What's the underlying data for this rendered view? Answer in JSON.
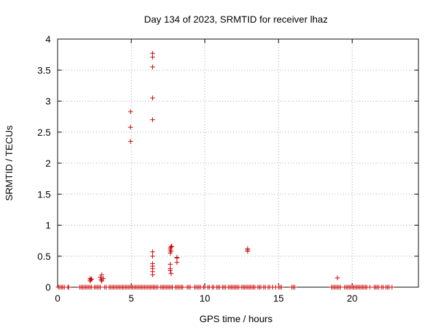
{
  "chart_data": {
    "type": "scatter",
    "title": "Day 134 of 2023, SRMTID for receiver lhaz",
    "xlabel": "GPS time / hours",
    "ylabel": "SRMTID / TECUs",
    "xlim": [
      0,
      24.5
    ],
    "ylim": [
      0,
      4
    ],
    "xticks": [
      0,
      5,
      10,
      15,
      20
    ],
    "xtick_labels": [
      "0",
      "5",
      "10",
      "15",
      "20"
    ],
    "yticks": [
      0,
      0.5,
      1,
      1.5,
      2,
      2.5,
      3,
      3.5,
      4
    ],
    "ytick_labels": [
      "0",
      "0.5",
      "1",
      "1.5",
      "2",
      "2.5",
      "3",
      "3.5",
      "4"
    ],
    "grid": true,
    "marker": "+",
    "series": [
      {
        "name": "lhaz",
        "color": "#cc0000",
        "x": [
          0.05,
          0.15,
          0.25,
          0.35,
          0.45,
          0.7,
          0.75,
          1.5,
          1.6,
          1.7,
          1.8,
          1.9,
          2.0,
          2.1,
          2.2,
          2.3,
          2.2,
          2.25,
          2.2,
          2.3,
          2.5,
          2.6,
          2.7,
          2.8,
          2.9,
          2.95,
          3.0,
          2.9,
          3.0,
          3.1,
          3.2,
          3.3,
          3.5,
          3.6,
          3.7,
          3.8,
          3.9,
          4.0,
          4.1,
          4.2,
          4.3,
          4.4,
          4.5,
          4.6,
          4.7,
          4.8,
          4.9,
          5.0,
          5.1,
          5.2,
          5.3,
          5.4,
          5.5,
          5.6,
          5.7,
          5.8,
          5.9,
          4.95,
          4.95,
          4.95,
          6.0,
          6.1,
          6.2,
          6.3,
          6.4,
          6.5,
          6.6,
          6.7,
          6.8,
          6.45,
          6.45,
          6.45,
          6.45,
          6.45,
          6.5,
          6.45,
          6.45,
          6.45,
          6.45,
          6.45,
          6.45,
          6.45,
          7.0,
          7.1,
          7.2,
          7.3,
          7.4,
          7.5,
          7.6,
          7.7,
          7.8,
          7.65,
          7.65,
          7.65,
          7.65,
          7.65,
          7.65,
          7.7,
          7.7,
          7.7,
          7.75,
          8.0,
          8.1,
          8.2,
          8.3,
          8.4,
          8.5,
          8.1,
          8.1,
          8.1,
          8.8,
          8.9,
          9.0,
          9.3,
          9.4,
          9.5,
          9.6,
          9.7,
          9.9,
          10.0,
          10.2,
          10.3,
          10.5,
          10.6,
          10.8,
          10.9,
          11.0,
          11.2,
          11.3,
          11.4,
          11.6,
          11.7,
          11.8,
          11.9,
          12.0,
          12.1,
          12.2,
          12.3,
          12.5,
          12.6,
          12.7,
          12.8,
          12.9,
          13.0,
          13.1,
          13.2,
          13.3,
          13.4,
          13.6,
          13.7,
          13.8,
          12.9,
          12.9,
          12.9,
          14.0,
          14.1,
          14.3,
          14.4,
          14.6,
          14.8,
          15.0,
          15.1,
          15.2,
          15.9,
          16.0,
          16.1,
          18.6,
          18.7,
          18.8,
          18.9,
          19.0,
          19.1,
          19.0,
          19.2,
          19.5,
          19.6,
          19.7,
          19.8,
          19.9,
          20.0,
          20.1,
          20.2,
          20.3,
          20.4,
          20.5,
          20.6,
          20.7,
          20.8,
          20.9,
          21.0,
          21.2,
          21.5,
          21.6,
          21.7,
          21.8,
          22.0,
          22.1,
          22.3,
          22.4,
          22.5,
          22.7
        ],
        "y": [
          0,
          0,
          0,
          0,
          0,
          0,
          0,
          0,
          0,
          0,
          0,
          0,
          0,
          0,
          0,
          0,
          0.1,
          0.12,
          0.14,
          0.13,
          0,
          0,
          0,
          0,
          0,
          0.12,
          0.1,
          0.16,
          0.2,
          0.14,
          0,
          0,
          0,
          0,
          0,
          0,
          0,
          0,
          0,
          0,
          0,
          0,
          0,
          0,
          0,
          0,
          0,
          0,
          0,
          0,
          0,
          0,
          0,
          0,
          0,
          0,
          0,
          2.35,
          2.58,
          2.83,
          0,
          0,
          0,
          0,
          0,
          0,
          0,
          0,
          0,
          3.77,
          3.71,
          3.55,
          3.05,
          2.7,
          0,
          0.57,
          0.5,
          0.38,
          0.34,
          0.3,
          0.25,
          0.2,
          0,
          0,
          0,
          0,
          0,
          0,
          0,
          0,
          0,
          0.63,
          0.6,
          0.55,
          0.37,
          0.3,
          0.27,
          0.22,
          0.65,
          0.58,
          0.66,
          0,
          0,
          0,
          0,
          0,
          0,
          0.47,
          0.4,
          0.48,
          0,
          0,
          0,
          0,
          0,
          0,
          0,
          0,
          0,
          0,
          0,
          0,
          0,
          0,
          0,
          0,
          0,
          0,
          0,
          0,
          0,
          0,
          0,
          0,
          0,
          0,
          0,
          0,
          0,
          0,
          0,
          0,
          0,
          0,
          0,
          0,
          0,
          0,
          0,
          0,
          0,
          0.58,
          0.62,
          0.6,
          0,
          0,
          0,
          0,
          0,
          0,
          0,
          0,
          0,
          0,
          0,
          0,
          0,
          0,
          0,
          0,
          0,
          0,
          0.15,
          0,
          0,
          0,
          0,
          0,
          0,
          0,
          0,
          0,
          0,
          0,
          0,
          0,
          0,
          0,
          0,
          0,
          0,
          0,
          0,
          0,
          0,
          0,
          0,
          0,
          0,
          0,
          0
        ]
      }
    ]
  }
}
